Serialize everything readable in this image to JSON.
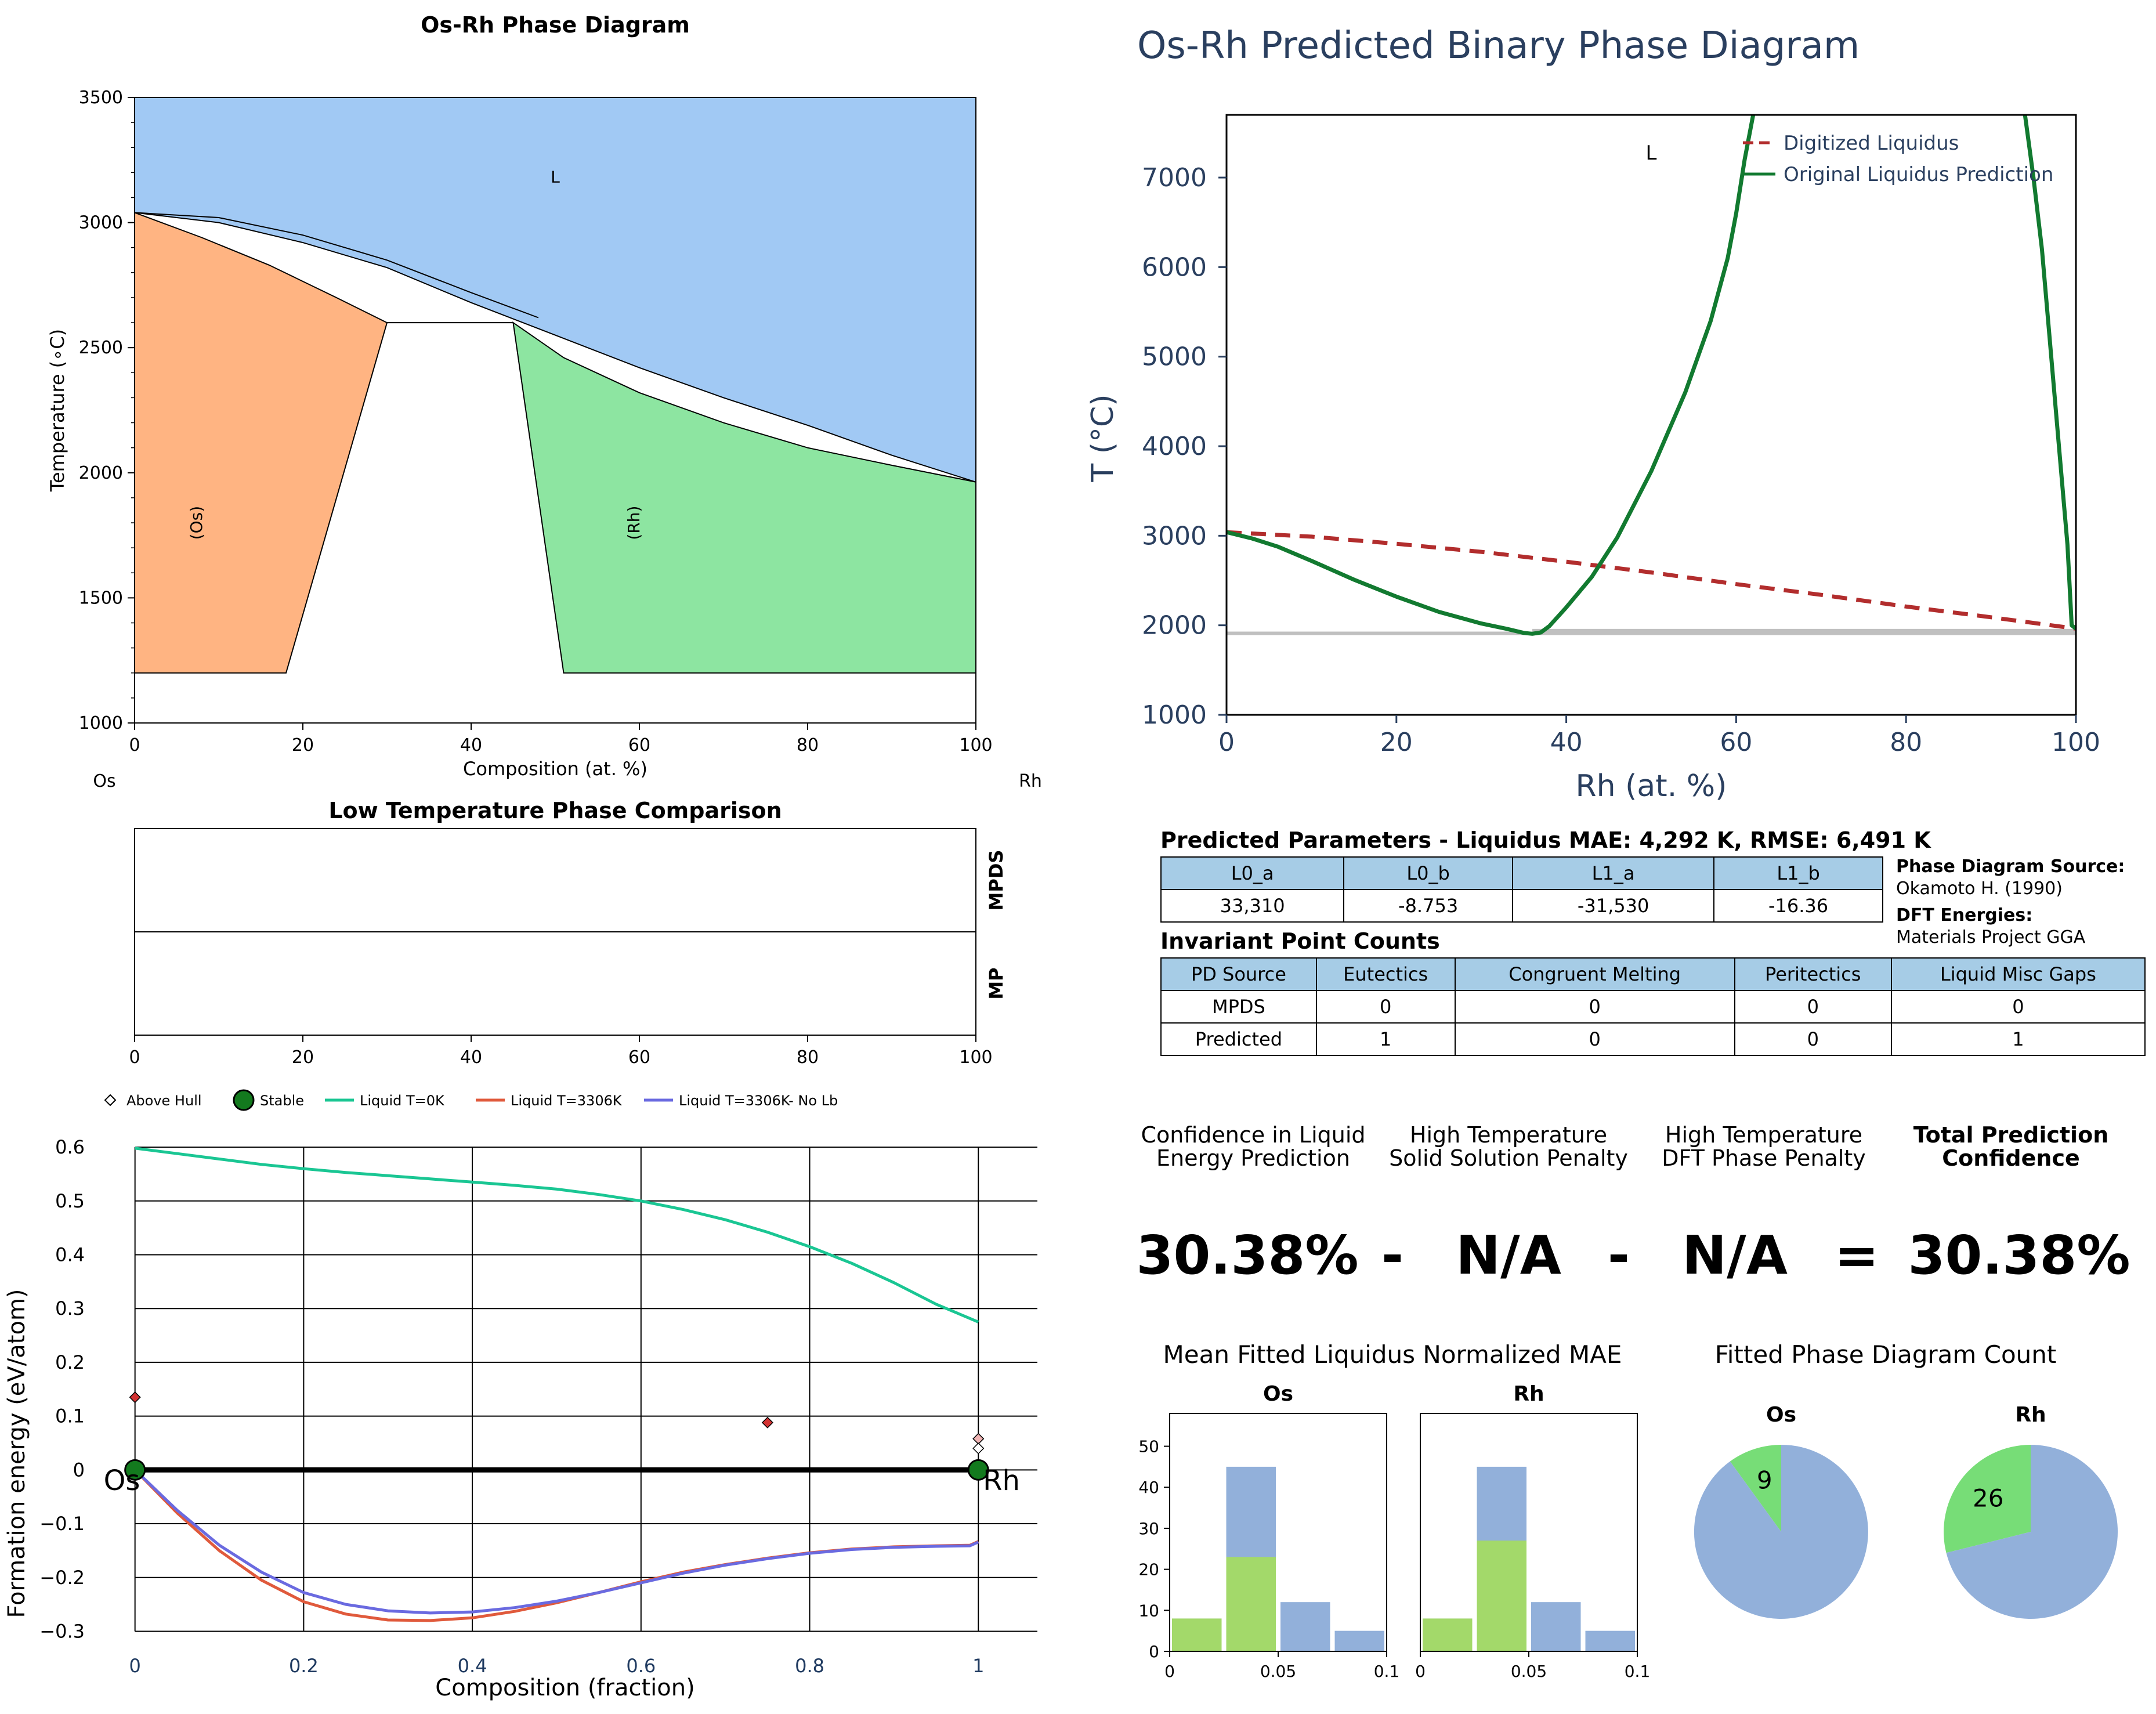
{
  "chart_data": [
    {
      "id": "phase_diagram",
      "type": "area",
      "title": "Os-Rh Phase Diagram",
      "xlabel": "Composition (at. %)",
      "ylabel": "Temperature (∘C)",
      "xlim": [
        0,
        100
      ],
      "ylim": [
        1000,
        3500
      ],
      "xticks": [
        "0",
        "20",
        "40",
        "60",
        "80",
        "100"
      ],
      "yticks": [
        "1000",
        "1500",
        "2000",
        "2500",
        "3000",
        "3500"
      ],
      "left_element": "Os",
      "right_element": "Rh",
      "regions": [
        {
          "label": "L",
          "color": "#a1c9f4",
          "label_x": 50,
          "label_y": 3160,
          "points": [
            [
              0,
              3040
            ],
            [
              10,
              3000
            ],
            [
              20,
              2920
            ],
            [
              30,
              2820
            ],
            [
              40,
              2680
            ],
            [
              50,
              2550
            ],
            [
              60,
              2420
            ],
            [
              70,
              2300
            ],
            [
              80,
              2190
            ],
            [
              90,
              2070
            ],
            [
              100,
              1963
            ],
            [
              100,
              3500
            ],
            [
              0,
              3500
            ]
          ]
        },
        {
          "label": "(Os)",
          "color": "#ffb482",
          "label_x": 8,
          "label_y": 1800,
          "rotate": true,
          "points": [
            [
              0,
              3040
            ],
            [
              8,
              2940
            ],
            [
              16,
              2830
            ],
            [
              24,
              2700
            ],
            [
              30,
              2600
            ],
            [
              18,
              1200
            ],
            [
              0,
              1200
            ]
          ]
        },
        {
          "label": "(Rh)",
          "color": "#8de5a1",
          "label_x": 60,
          "label_y": 1800,
          "rotate": true,
          "points": [
            [
              45,
              2600
            ],
            [
              51,
              2460
            ],
            [
              60,
              2320
            ],
            [
              70,
              2200
            ],
            [
              80,
              2100
            ],
            [
              90,
              2030
            ],
            [
              100,
              1963
            ],
            [
              100,
              1200
            ],
            [
              51,
              1200
            ]
          ]
        }
      ],
      "solidus_gap_top": [
        [
          0,
          3040
        ],
        [
          10,
          3020
        ],
        [
          20,
          2950
        ],
        [
          30,
          2850
        ],
        [
          40,
          2720
        ],
        [
          48,
          2620
        ]
      ],
      "peritectic_line": {
        "x": [
          30,
          45
        ],
        "y": 2600
      }
    },
    {
      "id": "low_temp_comparison",
      "type": "table",
      "title": "Low Temperature Phase Comparison",
      "rows": [
        "MPDS",
        "MP"
      ],
      "xlim": [
        0,
        100
      ],
      "xticks": [
        "0",
        "20",
        "40",
        "60",
        "80",
        "100"
      ]
    },
    {
      "id": "formation_energy",
      "type": "line",
      "xlabel": "Composition (fraction)",
      "ylabel": "Formation energy (eV/atom)",
      "xlim": [
        -0.05,
        1.07
      ],
      "ylim": [
        -0.32,
        0.64
      ],
      "xticks": [
        "0",
        "0.2",
        "0.4",
        "0.6",
        "0.8",
        "1"
      ],
      "yticks": [
        "−0.3",
        "−0.2",
        "−0.1",
        "0",
        "0.1",
        "0.2",
        "0.3",
        "0.4",
        "0.5",
        "0.6"
      ],
      "legend": [
        "Above Hull",
        "Stable",
        "Liquid T=0K",
        "Liquid T=3306K",
        "Liquid T=3306K- No Lb"
      ],
      "legend_position": "top",
      "end_labels": [
        "Os",
        "Rh"
      ],
      "series": [
        {
          "name": "Liquid T=0K",
          "color": "#1ac693",
          "x": [
            0,
            0.05,
            0.1,
            0.15,
            0.2,
            0.25,
            0.3,
            0.35,
            0.4,
            0.45,
            0.5,
            0.55,
            0.6,
            0.65,
            0.7,
            0.75,
            0.8,
            0.85,
            0.9,
            0.95,
            1
          ],
          "y": [
            0.598,
            0.588,
            0.578,
            0.568,
            0.56,
            0.553,
            0.547,
            0.541,
            0.535,
            0.529,
            0.522,
            0.512,
            0.5,
            0.484,
            0.465,
            0.442,
            0.415,
            0.384,
            0.348,
            0.308,
            0.275
          ]
        },
        {
          "name": "Liquid T=3306K",
          "color": "#e05a3c",
          "x": [
            0,
            0.05,
            0.1,
            0.15,
            0.2,
            0.25,
            0.3,
            0.35,
            0.4,
            0.45,
            0.5,
            0.55,
            0.6,
            0.65,
            0.7,
            0.75,
            0.8,
            0.85,
            0.9,
            0.95,
            0.99,
            1
          ],
          "y": [
            0,
            -0.08,
            -0.15,
            -0.205,
            -0.245,
            -0.268,
            -0.279,
            -0.28,
            -0.275,
            -0.263,
            -0.247,
            -0.228,
            -0.208,
            -0.19,
            -0.176,
            -0.164,
            -0.154,
            -0.147,
            -0.143,
            -0.141,
            -0.14,
            -0.133
          ]
        },
        {
          "name": "Liquid T=3306K- No Lb",
          "color": "#6a6ae0",
          "x": [
            0,
            0.05,
            0.1,
            0.15,
            0.2,
            0.25,
            0.3,
            0.35,
            0.4,
            0.45,
            0.5,
            0.55,
            0.6,
            0.65,
            0.7,
            0.75,
            0.8,
            0.85,
            0.9,
            0.95,
            0.99,
            1
          ],
          "y": [
            0,
            -0.075,
            -0.14,
            -0.19,
            -0.228,
            -0.25,
            -0.262,
            -0.266,
            -0.264,
            -0.256,
            -0.244,
            -0.228,
            -0.21,
            -0.192,
            -0.177,
            -0.165,
            -0.155,
            -0.148,
            -0.144,
            -0.142,
            -0.141,
            -0.134
          ]
        },
        {
          "name": "Hull",
          "color": "#000000",
          "x": [
            0,
            1
          ],
          "y": [
            0,
            0
          ]
        }
      ],
      "above_hull": [
        {
          "x": 0,
          "y": 0.135,
          "color": "#d23232"
        },
        {
          "x": 0.75,
          "y": 0.088,
          "color": "#d23232"
        },
        {
          "x": 1,
          "y": 0.058,
          "color": "#f0b4b4"
        },
        {
          "x": 1,
          "y": 0.04,
          "color": "#ffffff"
        }
      ],
      "stable": [
        {
          "x": 0,
          "y": 0
        },
        {
          "x": 1,
          "y": 0
        }
      ]
    },
    {
      "id": "predicted_binary",
      "type": "line",
      "title": "Os-Rh Predicted Binary Phase Diagram",
      "xlabel": "Rh (at. %)",
      "ylabel": "T (°C)",
      "xlim": [
        0,
        100
      ],
      "ylim": [
        1000,
        7700
      ],
      "xticks": [
        "0",
        "20",
        "40",
        "60",
        "80",
        "100"
      ],
      "yticks": [
        "1000",
        "2000",
        "3000",
        "4000",
        "5000",
        "6000",
        "7000"
      ],
      "region_label": "L",
      "region_label_pos": [
        50,
        7200
      ],
      "legend": [
        "Digitized Liquidus",
        "Original Liquidus Prediction"
      ],
      "legend_position": "top-right",
      "series": [
        {
          "name": "Digitized Liquidus",
          "color": "#b22d2d",
          "dash": true,
          "x": [
            0,
            10,
            20,
            30,
            40,
            50,
            60,
            70,
            80,
            90,
            100
          ],
          "y": [
            3040,
            2990,
            2910,
            2820,
            2710,
            2590,
            2460,
            2340,
            2210,
            2090,
            1963
          ]
        },
        {
          "name": "Original Liquidus Prediction",
          "color": "#127a30",
          "x": [
            0,
            3,
            6,
            10,
            15,
            20,
            25,
            30,
            33,
            35,
            36,
            37,
            38,
            40,
            43,
            46,
            50,
            54,
            57,
            59,
            60,
            61,
            62
          ],
          "y": [
            3040,
            2970,
            2880,
            2720,
            2510,
            2320,
            2150,
            2020,
            1960,
            1915,
            1905,
            1920,
            1990,
            2200,
            2540,
            2980,
            3720,
            4600,
            5400,
            6100,
            6600,
            7200,
            7700
          ]
        },
        {
          "name": "Original Liquidus Prediction (right branch)",
          "color": "#127a30",
          "x": [
            94,
            95,
            96,
            97,
            98,
            99,
            99.5,
            100
          ],
          "y": [
            7700,
            7000,
            6200,
            5100,
            4000,
            2900,
            2000,
            1963
          ]
        }
      ],
      "band": {
        "y": 1910,
        "y2": 1960,
        "x": [
          36,
          100
        ],
        "color": "#c0c0c0"
      }
    },
    {
      "id": "mae_hist_os",
      "type": "bar",
      "title": "Os",
      "xlim": [
        0,
        0.1
      ],
      "ylim": [
        0,
        58
      ],
      "xticks": [
        "0",
        "0.05",
        "0.1"
      ],
      "yticks": [
        "0",
        "10",
        "20",
        "30",
        "40",
        "50"
      ],
      "bins": [
        [
          0.0,
          0.025
        ],
        [
          0.025,
          0.05
        ],
        [
          0.05,
          0.075
        ],
        [
          0.075,
          0.1
        ]
      ],
      "series": [
        {
          "name": "all",
          "color": "#92b0da",
          "values": [
            8,
            45,
            12,
            5
          ]
        },
        {
          "name": "fitted",
          "color": "#a3d96a",
          "values": [
            8,
            23,
            0,
            0
          ]
        }
      ]
    },
    {
      "id": "mae_hist_rh",
      "type": "bar",
      "title": "Rh",
      "xlim": [
        0,
        0.1
      ],
      "ylim": [
        0,
        58
      ],
      "xticks": [
        "0",
        "0.05",
        "0.1"
      ],
      "bins": [
        [
          0.0,
          0.025
        ],
        [
          0.025,
          0.05
        ],
        [
          0.05,
          0.075
        ],
        [
          0.075,
          0.1
        ]
      ],
      "series": [
        {
          "name": "all",
          "color": "#92b0da",
          "values": [
            8,
            45,
            12,
            5
          ]
        },
        {
          "name": "fitted",
          "color": "#a3d96a",
          "values": [
            8,
            27,
            0,
            0
          ]
        }
      ]
    },
    {
      "id": "pie_os",
      "type": "pie",
      "title": "Os",
      "slices": [
        {
          "value": 9,
          "label": "9",
          "color": "#77dd77"
        },
        {
          "value": 81,
          "color": "#92b0da"
        }
      ]
    },
    {
      "id": "pie_rh",
      "type": "pie",
      "title": "Rh",
      "slices": [
        {
          "value": 26,
          "label": "26",
          "color": "#77dd77"
        },
        {
          "value": 64,
          "color": "#92b0da"
        }
      ]
    }
  ],
  "params": {
    "title": "Predicted Parameters - Liquidus MAE: 4,292 K, RMSE: 6,491 K",
    "headers": [
      "L0_a",
      "L0_b",
      "L1_a",
      "L1_b"
    ],
    "values": [
      "33,310",
      "-8.753",
      "-31,530",
      "-16.36"
    ]
  },
  "invariants": {
    "title": "Invariant Point Counts",
    "headers": [
      "PD Source",
      "Eutectics",
      "Congruent Melting",
      "Peritectics",
      "Liquid Misc Gaps"
    ],
    "rows": [
      [
        "MPDS",
        "0",
        "0",
        "0",
        "0"
      ],
      [
        "Predicted",
        "1",
        "0",
        "0",
        "1"
      ]
    ]
  },
  "sources": {
    "pd_label": "Phase Diagram Source:",
    "pd_value": "Okamoto H. (1990)",
    "dft_label": "DFT Energies:",
    "dft_value": "Materials Project GGA"
  },
  "confidence": {
    "labels": [
      [
        "Confidence in Liquid",
        "Energy Prediction"
      ],
      [
        "High Temperature",
        "Solid Solution Penalty"
      ],
      [
        "High Temperature",
        "DFT Phase Penalty"
      ],
      [
        "Total Prediction",
        "Confidence"
      ]
    ],
    "values": [
      "30.38%",
      "-",
      "N/A",
      "-",
      "N/A",
      "=",
      "30.38%"
    ]
  },
  "section_titles": {
    "mae": "Mean Fitted Liquidus Normalized MAE",
    "count": "Fitted Phase Diagram Count"
  }
}
